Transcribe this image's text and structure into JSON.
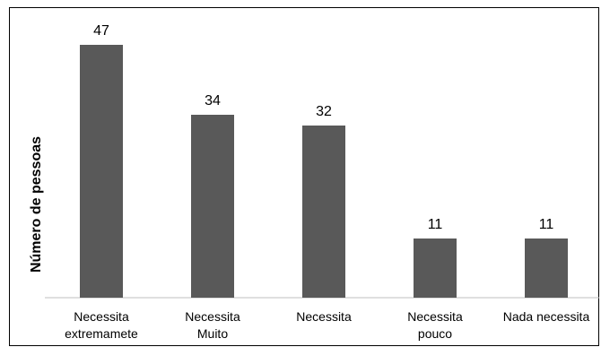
{
  "chart_data": {
    "type": "bar",
    "categories": [
      [
        "Necessita",
        "extremamete"
      ],
      [
        "Necessita",
        "Muito"
      ],
      [
        "Necessita"
      ],
      [
        "Necessita",
        "pouco"
      ],
      [
        "Nada necessita"
      ]
    ],
    "values": [
      47,
      34,
      32,
      11,
      11
    ],
    "title": "",
    "xlabel": "",
    "ylabel": "Número de pessoas",
    "ylim": [
      0,
      50
    ],
    "grid": false,
    "legend": "none",
    "data_labels": true,
    "colors": {
      "bar": "#595959",
      "axis": "#bfbfbf",
      "border": "#000000"
    }
  }
}
